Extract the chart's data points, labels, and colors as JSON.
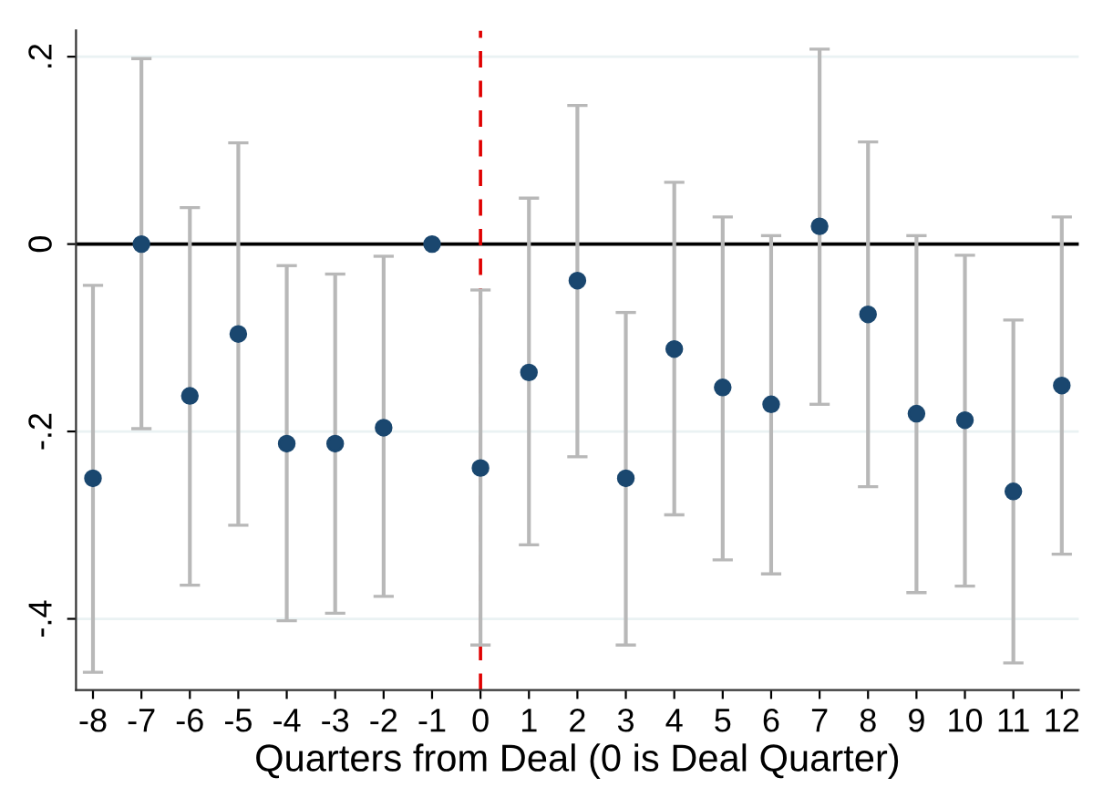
{
  "chart_data": {
    "type": "scatter",
    "xlabel": "Quarters from Deal (0 is Deal Quarter)",
    "x": [
      -8,
      -7,
      -6,
      -5,
      -4,
      -3,
      -2,
      -1,
      0,
      1,
      2,
      3,
      4,
      5,
      6,
      7,
      8,
      9,
      10,
      11,
      12
    ],
    "series": [
      {
        "color": "#1a476f",
        "values": [
          -0.25,
          0.0,
          -0.162,
          -0.096,
          -0.213,
          -0.213,
          -0.196,
          0.0,
          -0.239,
          -0.137,
          -0.039,
          -0.25,
          -0.112,
          -0.153,
          -0.171,
          0.019,
          -0.075,
          -0.181,
          -0.188,
          -0.264,
          -0.151
        ],
        "errors": [
          [
            -0.457,
            -0.044
          ],
          [
            -0.197,
            0.198
          ],
          [
            -0.364,
            0.039
          ],
          [
            -0.3,
            0.108
          ],
          [
            -0.402,
            -0.023
          ],
          [
            -0.394,
            -0.032
          ],
          [
            -0.376,
            -0.013
          ],
          null,
          [
            -0.428,
            -0.049
          ],
          [
            -0.321,
            0.049
          ],
          [
            -0.227,
            0.148
          ],
          [
            -0.428,
            -0.073
          ],
          [
            -0.289,
            0.066
          ],
          [
            -0.337,
            0.029
          ],
          [
            -0.352,
            0.009
          ],
          [
            -0.171,
            0.208
          ],
          [
            -0.259,
            0.109
          ],
          [
            -0.372,
            0.009
          ],
          [
            -0.365,
            -0.012
          ],
          [
            -0.447,
            -0.081
          ],
          [
            -0.331,
            0.029
          ]
        ]
      }
    ],
    "xlim": [
      -8.35,
      12.35
    ],
    "xticks": [
      -8,
      -7,
      -6,
      -5,
      -4,
      -3,
      -2,
      -1,
      0,
      1,
      2,
      3,
      4,
      5,
      6,
      7,
      8,
      9,
      10,
      11,
      12
    ],
    "ylim": [
      -0.476,
      0.228
    ],
    "yticks": [
      {
        "value": -0.4,
        "label": "-.4"
      },
      {
        "value": -0.2,
        "label": "-.2"
      },
      0,
      {
        "value": 0.2,
        "label": ".2"
      }
    ],
    "ref_lines": [
      {
        "axis": "y",
        "value": 0,
        "color": "#000000",
        "line_style": "solid"
      },
      {
        "axis": "x",
        "value": 0,
        "color": "#e00000",
        "line_style": "dashed"
      }
    ],
    "grid": "y",
    "marker": "circle"
  }
}
